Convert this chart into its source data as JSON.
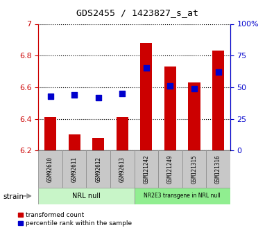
{
  "title": "GDS2455 / 1423827_s_at",
  "samples": [
    "GSM92610",
    "GSM92611",
    "GSM92612",
    "GSM92613",
    "GSM121242",
    "GSM121249",
    "GSM121315",
    "GSM121316"
  ],
  "transformed_count": [
    6.41,
    6.3,
    6.28,
    6.41,
    6.88,
    6.73,
    6.63,
    6.83
  ],
  "percentile_rank": [
    43,
    44,
    42,
    45,
    65,
    51,
    49,
    62
  ],
  "ylim_left": [
    6.2,
    7.0
  ],
  "ylim_right": [
    0,
    100
  ],
  "yticks_left": [
    6.2,
    6.4,
    6.6,
    6.8,
    7.0
  ],
  "ytick_labels_left": [
    "6.2",
    "6.4",
    "6.6",
    "6.8",
    "7"
  ],
  "yticks_right": [
    0,
    25,
    50,
    75,
    100
  ],
  "ytick_labels_right": [
    "0",
    "25",
    "50",
    "75",
    "100%"
  ],
  "groups": [
    {
      "label": "NRL null",
      "indices": [
        0,
        1,
        2,
        3
      ],
      "color": "#c8f5c8"
    },
    {
      "label": "NR2E3 transgene in NRL null",
      "indices": [
        4,
        5,
        6,
        7
      ],
      "color": "#90ee90"
    }
  ],
  "bar_color": "#cc0000",
  "dot_color": "#0000cc",
  "tick_color_left": "#cc0000",
  "tick_color_right": "#0000cc",
  "background_color": "#ffffff",
  "grid_color": "#000000",
  "sample_bg_color": "#c8c8c8",
  "bar_width": 0.5,
  "dot_size": 30,
  "legend_items": [
    {
      "label": "transformed count",
      "color": "#cc0000"
    },
    {
      "label": "percentile rank within the sample",
      "color": "#0000cc"
    }
  ]
}
